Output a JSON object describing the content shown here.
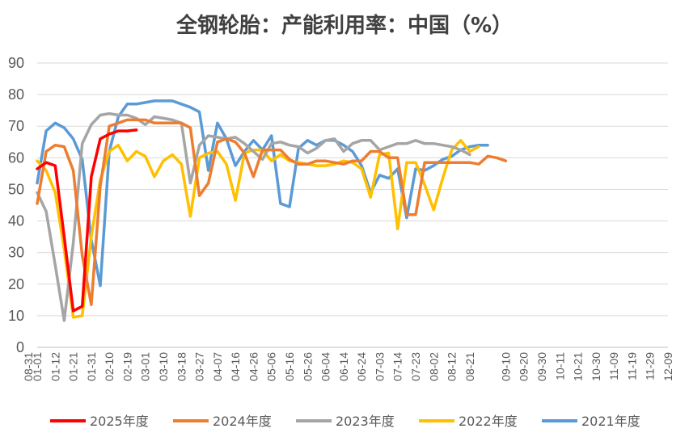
{
  "chart_data": {
    "type": "line",
    "title": "全钢轮胎：产能利用率：中国（%）",
    "xlabel": "",
    "ylabel": "",
    "ylim": [
      0,
      90
    ],
    "yticks": [
      0,
      10,
      20,
      30,
      40,
      50,
      60,
      70,
      80,
      90
    ],
    "grid": true,
    "legend_position": "bottom",
    "x": [
      "01-01",
      "01-05",
      "01-12",
      "01-17",
      "01-21",
      "01-26",
      "01-31",
      "02-05",
      "02-10",
      "02-14",
      "02-19",
      "02-24",
      "03-01",
      "03-05",
      "03-10",
      "03-14",
      "03-18",
      "03-22",
      "03-27",
      "04-01",
      "04-07",
      "04-11",
      "04-16",
      "04-21",
      "04-26",
      "05-01",
      "05-06",
      "05-11",
      "05-16",
      "05-21",
      "05-26",
      "05-30",
      "06-04",
      "06-09",
      "06-14",
      "06-19",
      "06-24",
      "06-28",
      "07-03",
      "07-09",
      "07-14",
      "07-18",
      "07-23",
      "07-28",
      "08-02",
      "08-07",
      "08-12",
      "08-16",
      "08-21",
      "08-26",
      "09-01",
      "09-05",
      "09-10",
      "09-15",
      "09-20",
      "09-25",
      "09-30",
      "10-05",
      "10-11",
      "10-16",
      "10-21",
      "10-25",
      "10-30",
      "11-04",
      "11-09",
      "11-14",
      "11-19",
      "11-24",
      "11-29",
      "12-04",
      "12-09"
    ],
    "xticks": [
      "01-01",
      "01-12",
      "01-21",
      "01-31",
      "02-10",
      "02-19",
      "03-01",
      "03-10",
      "03-18",
      "03-27",
      "04-07",
      "04-16",
      "04-26",
      "05-06",
      "05-16",
      "05-26",
      "06-04",
      "06-14",
      "06-24",
      "07-03",
      "07-14",
      "07-23",
      "08-02",
      "08-12",
      "08-21",
      "08-31",
      "09-10",
      "09-20",
      "09-30",
      "10-11",
      "10-21",
      "10-30",
      "11-09",
      "11-19",
      "11-29",
      "12-09"
    ],
    "series": [
      {
        "name": "2025年度",
        "color": "#ff0000",
        "values": [
          56.5,
          58.5,
          57.5,
          35,
          11.5,
          13,
          54,
          66,
          67.5,
          68.5,
          68.5,
          68.8,
          null,
          null,
          null,
          null,
          null,
          null,
          null,
          null,
          null,
          null,
          null,
          null,
          null,
          null,
          null,
          null,
          null,
          null,
          null,
          null,
          null,
          null,
          null,
          null,
          null,
          null,
          null,
          null,
          null,
          null,
          null,
          null,
          null,
          null,
          null,
          null,
          null,
          null,
          null,
          null,
          null,
          null,
          null,
          null,
          null,
          null,
          null,
          null,
          null,
          null,
          null,
          null,
          null,
          null,
          null,
          null,
          null,
          null,
          null
        ]
      },
      {
        "name": "2024年度",
        "color": "#ed7d31",
        "values": [
          45.5,
          62,
          64,
          63.5,
          56,
          29,
          13.5,
          51,
          70,
          71,
          72,
          72,
          72,
          71,
          71,
          71,
          71,
          69.5,
          48,
          52,
          65,
          66,
          65,
          61.5,
          54,
          62.5,
          62.5,
          62.5,
          59.5,
          58,
          58,
          59,
          59,
          58.5,
          58,
          59,
          59,
          62,
          62,
          60,
          60,
          42,
          42,
          58.5,
          58.5,
          58.5,
          58.5,
          58.5,
          58.5,
          58,
          60.5,
          60,
          59,
          null,
          null,
          null,
          null,
          null,
          null,
          null,
          null,
          null,
          null,
          null,
          null,
          null,
          null,
          null,
          null,
          null,
          null
        ]
      },
      {
        "name": "2023年度",
        "color": "#a5a5a5",
        "values": [
          49,
          43,
          26,
          8.5,
          33,
          64.5,
          70.5,
          73.5,
          74,
          73.5,
          73.5,
          72.5,
          70.5,
          73,
          72.5,
          72,
          71,
          52,
          64,
          67,
          66.5,
          66,
          66.5,
          64.5,
          62,
          59.5,
          64.5,
          65,
          64,
          63.5,
          61.5,
          63,
          65.5,
          66,
          62,
          64.5,
          65.5,
          65.5,
          62.5,
          63.5,
          64.5,
          64.5,
          65.5,
          64.5,
          64.5,
          64,
          63.5,
          62.5,
          61,
          null,
          null,
          null,
          null,
          null,
          null,
          null,
          null,
          null,
          null,
          null,
          null,
          null,
          null,
          null,
          null,
          null,
          null,
          null,
          null,
          null,
          null
        ]
      },
      {
        "name": "2022年度",
        "color": "#ffc000",
        "values": [
          59,
          56,
          49,
          31,
          9.5,
          10,
          35,
          53,
          62,
          64,
          59,
          62,
          60.5,
          54,
          59,
          61,
          58,
          41.5,
          60,
          61.5,
          62,
          58,
          46.5,
          61.5,
          62.5,
          62.5,
          59,
          61,
          59,
          58.5,
          58,
          57.5,
          57.5,
          58,
          59,
          58.5,
          56.5,
          47.5,
          61,
          61.5,
          37.5,
          58.5,
          58.5,
          51.5,
          43.5,
          53.5,
          62.5,
          65.5,
          62,
          63.5,
          null,
          null,
          null,
          null,
          null,
          null,
          null,
          null,
          null,
          null,
          null,
          null,
          null,
          null,
          null,
          null,
          null,
          null,
          null,
          null,
          null
        ]
      },
      {
        "name": "2021年度",
        "color": "#5b9bd5",
        "values": [
          52,
          68.5,
          71,
          69.5,
          66,
          59.5,
          34,
          19.5,
          62,
          73,
          77,
          77,
          77.5,
          78,
          78,
          78,
          77,
          76,
          74.5,
          56,
          71,
          66,
          57.5,
          62,
          65.5,
          62.5,
          67,
          45.5,
          44.5,
          63,
          65.5,
          64,
          65.5,
          65.5,
          64,
          62,
          57.5,
          49,
          54.5,
          53.5,
          56.5,
          41,
          56.5,
          56,
          57.5,
          59.5,
          60.5,
          62.5,
          63.5,
          64,
          64,
          null,
          null,
          null,
          null,
          null,
          null,
          null,
          null,
          null,
          null,
          null,
          null,
          null,
          null,
          null,
          null,
          null,
          null,
          null,
          null
        ]
      }
    ]
  }
}
